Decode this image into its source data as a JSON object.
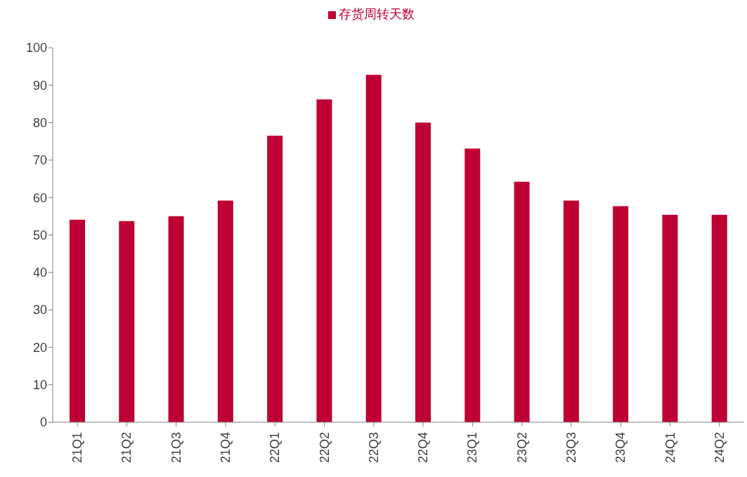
{
  "chart_data": {
    "type": "bar",
    "categories": [
      "21Q1",
      "21Q2",
      "21Q3",
      "21Q4",
      "22Q1",
      "22Q2",
      "22Q3",
      "22Q4",
      "23Q1",
      "23Q2",
      "23Q3",
      "23Q4",
      "24Q1",
      "24Q2"
    ],
    "series": [
      {
        "name": "存货周转天数",
        "color": "#be0032",
        "values": [
          54.1,
          53.7,
          55.0,
          59.2,
          76.5,
          86.2,
          92.8,
          80.0,
          73.1,
          64.2,
          59.2,
          57.7,
          55.4,
          55.4
        ]
      }
    ],
    "ylim": [
      0,
      100
    ],
    "yticks": [
      0,
      10,
      20,
      30,
      40,
      50,
      60,
      70,
      80,
      90,
      100
    ],
    "grid": false,
    "legend": "top"
  }
}
